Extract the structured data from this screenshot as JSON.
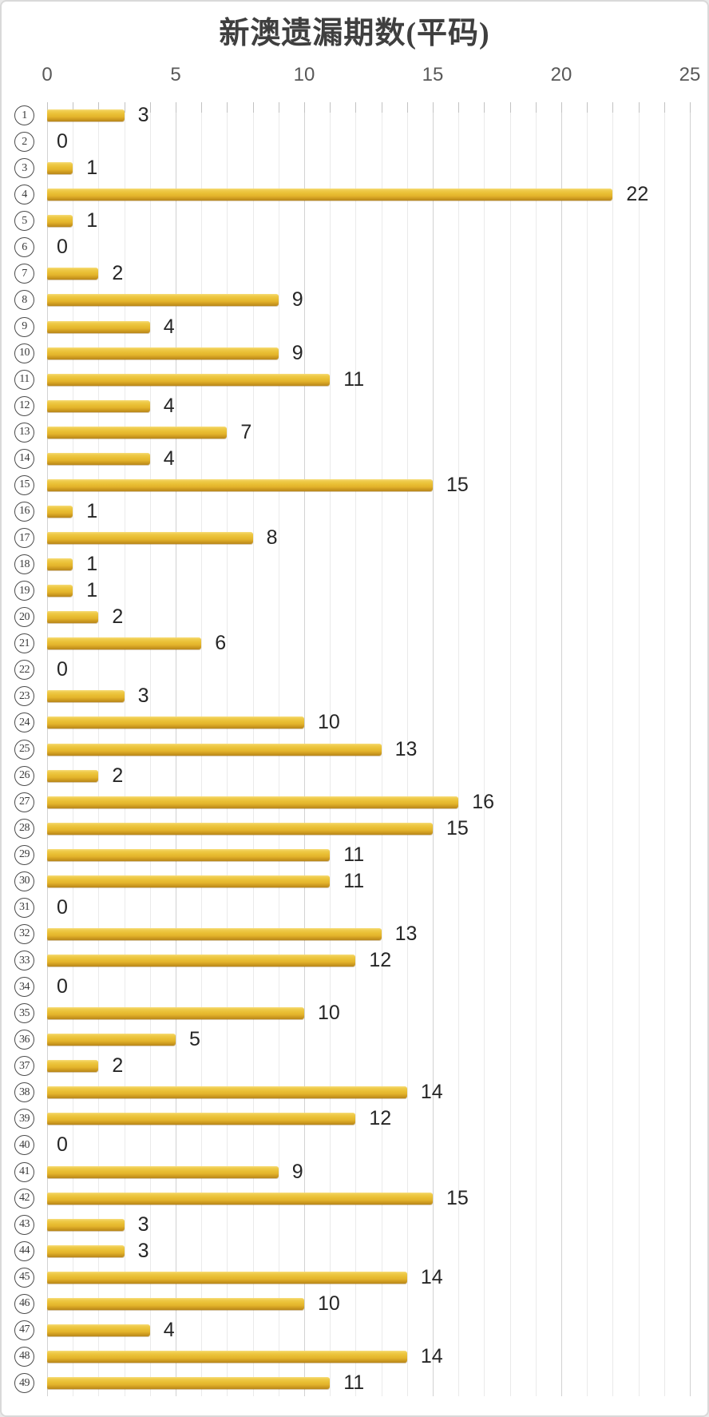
{
  "page": {
    "title": "新澳遗漏期数(平码)"
  },
  "chart_data": {
    "type": "bar",
    "orientation": "horizontal",
    "title": "新澳遗漏期数(平码)",
    "category_style": "circled-number",
    "categories": [
      "1",
      "2",
      "3",
      "4",
      "5",
      "6",
      "7",
      "8",
      "9",
      "10",
      "11",
      "12",
      "13",
      "14",
      "15",
      "16",
      "17",
      "18",
      "19",
      "20",
      "21",
      "22",
      "23",
      "24",
      "25",
      "26",
      "27",
      "28",
      "29",
      "30",
      "31",
      "32",
      "33",
      "34",
      "35",
      "36",
      "37",
      "38",
      "39",
      "40",
      "41",
      "42",
      "43",
      "44",
      "45",
      "46",
      "47",
      "48",
      "49"
    ],
    "values": [
      3,
      0,
      1,
      22,
      1,
      0,
      2,
      9,
      4,
      9,
      11,
      4,
      7,
      4,
      15,
      1,
      8,
      1,
      1,
      2,
      6,
      0,
      3,
      10,
      13,
      2,
      16,
      15,
      11,
      11,
      0,
      13,
      12,
      0,
      10,
      5,
      2,
      14,
      12,
      0,
      9,
      15,
      3,
      3,
      14,
      10,
      4,
      14,
      11
    ],
    "xlim": [
      0,
      25
    ],
    "x_ticks": [
      0,
      5,
      10,
      15,
      20,
      25
    ],
    "x_minor_unit": 1,
    "grid": "vertical-minor-and-major",
    "legend": "none",
    "data_labels": "outside-end",
    "colors": {
      "bar_main": "#e9be35",
      "bar_highlight": "#f6dd7c",
      "bar_shadow": "#b8861a",
      "value_label": "#262626",
      "axis_label": "#595959",
      "title": "#3f3f3f",
      "grid_minor": "#eaeaea",
      "grid_major": "#d2d2d2",
      "card_border": "#d9d9d9",
      "background": "#ffffff"
    }
  }
}
